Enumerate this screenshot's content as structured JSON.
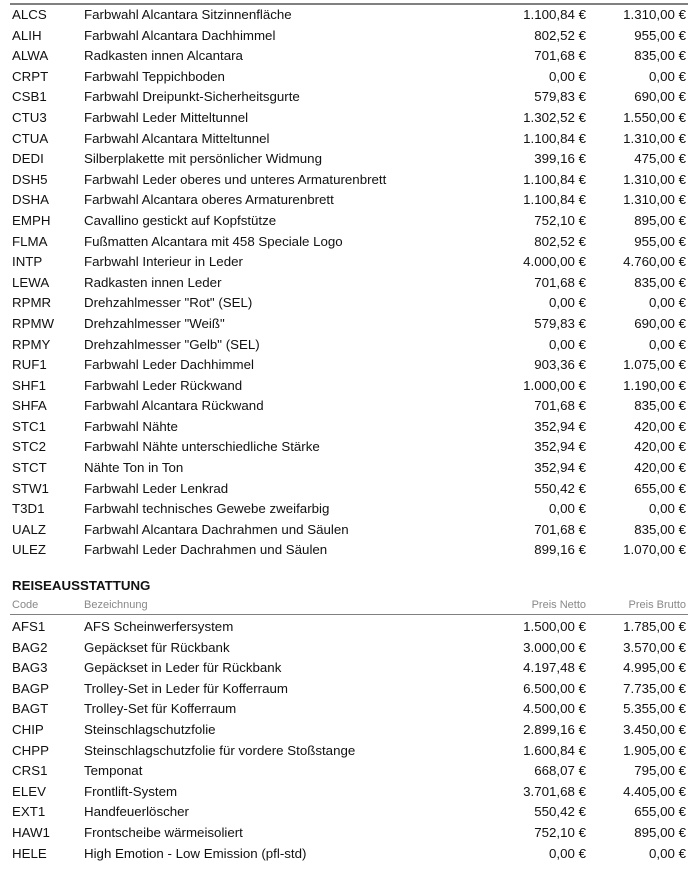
{
  "section1": {
    "rows": [
      {
        "code": "ALCS",
        "desc": "Farbwahl Alcantara Sitzinnenfläche",
        "net": "1.100,84 €",
        "gross": "1.310,00 €"
      },
      {
        "code": "ALIH",
        "desc": "Farbwahl Alcantara Dachhimmel",
        "net": "802,52 €",
        "gross": "955,00 €"
      },
      {
        "code": "ALWA",
        "desc": "Radkasten innen Alcantara",
        "net": "701,68 €",
        "gross": "835,00 €"
      },
      {
        "code": "CRPT",
        "desc": "Farbwahl Teppichboden",
        "net": "0,00 €",
        "gross": "0,00 €"
      },
      {
        "code": "CSB1",
        "desc": "Farbwahl Dreipunkt-Sicherheitsgurte",
        "net": "579,83 €",
        "gross": "690,00 €"
      },
      {
        "code": "CTU3",
        "desc": "Farbwahl Leder Mitteltunnel",
        "net": "1.302,52 €",
        "gross": "1.550,00 €"
      },
      {
        "code": "CTUA",
        "desc": "Farbwahl Alcantara Mitteltunnel",
        "net": "1.100,84 €",
        "gross": "1.310,00 €"
      },
      {
        "code": "DEDI",
        "desc": "Silberplakette mit persönlicher Widmung",
        "net": "399,16 €",
        "gross": "475,00 €"
      },
      {
        "code": "DSH5",
        "desc": "Farbwahl Leder oberes und unteres Armaturenbrett",
        "net": "1.100,84 €",
        "gross": "1.310,00 €"
      },
      {
        "code": "DSHA",
        "desc": "Farbwahl Alcantara oberes Armaturenbrett",
        "net": "1.100,84 €",
        "gross": "1.310,00 €"
      },
      {
        "code": "EMPH",
        "desc": "Cavallino gestickt auf Kopfstütze",
        "net": "752,10 €",
        "gross": "895,00 €"
      },
      {
        "code": "FLMA",
        "desc": "Fußmatten Alcantara mit 458 Speciale Logo",
        "net": "802,52 €",
        "gross": "955,00 €"
      },
      {
        "code": "INTP",
        "desc": "Farbwahl Interieur in Leder",
        "net": "4.000,00 €",
        "gross": "4.760,00 €"
      },
      {
        "code": "LEWA",
        "desc": "Radkasten innen Leder",
        "net": "701,68 €",
        "gross": "835,00 €"
      },
      {
        "code": "RPMR",
        "desc": "Drehzahlmesser \"Rot\" (SEL)",
        "net": "0,00 €",
        "gross": "0,00 €"
      },
      {
        "code": "RPMW",
        "desc": "Drehzahlmesser \"Weiß\"",
        "net": "579,83 €",
        "gross": "690,00 €"
      },
      {
        "code": "RPMY",
        "desc": "Drehzahlmesser \"Gelb\" (SEL)",
        "net": "0,00 €",
        "gross": "0,00 €"
      },
      {
        "code": "RUF1",
        "desc": "Farbwahl Leder Dachhimmel",
        "net": "903,36 €",
        "gross": "1.075,00 €"
      },
      {
        "code": "SHF1",
        "desc": "Farbwahl Leder Rückwand",
        "net": "1.000,00 €",
        "gross": "1.190,00 €"
      },
      {
        "code": "SHFA",
        "desc": "Farbwahl Alcantara Rückwand",
        "net": "701,68 €",
        "gross": "835,00 €"
      },
      {
        "code": "STC1",
        "desc": "Farbwahl Nähte",
        "net": "352,94 €",
        "gross": "420,00 €"
      },
      {
        "code": "STC2",
        "desc": "Farbwahl Nähte unterschiedliche Stärke",
        "net": "352,94 €",
        "gross": "420,00 €"
      },
      {
        "code": "STCT",
        "desc": "Nähte Ton in Ton",
        "net": "352,94 €",
        "gross": "420,00 €"
      },
      {
        "code": "STW1",
        "desc": "Farbwahl Leder Lenkrad",
        "net": "550,42 €",
        "gross": "655,00 €"
      },
      {
        "code": "T3D1",
        "desc": "Farbwahl technisches Gewebe zweifarbig",
        "net": "0,00 €",
        "gross": "0,00 €"
      },
      {
        "code": "UALZ",
        "desc": "Farbwahl Alcantara Dachrahmen und Säulen",
        "net": "701,68 €",
        "gross": "835,00 €"
      },
      {
        "code": "ULEZ",
        "desc": "Farbwahl Leder Dachrahmen und Säulen",
        "net": "899,16 €",
        "gross": "1.070,00 €"
      }
    ]
  },
  "section2": {
    "title": "REISEAUSSTATTUNG",
    "headers": {
      "code": "Code",
      "desc": "Bezeichnung",
      "net": "Preis Netto",
      "gross": "Preis Brutto"
    },
    "rows": [
      {
        "code": "AFS1",
        "desc": "AFS Scheinwerfersystem",
        "net": "1.500,00 €",
        "gross": "1.785,00 €"
      },
      {
        "code": "BAG2",
        "desc": "Gepäckset für Rückbank",
        "net": "3.000,00 €",
        "gross": "3.570,00 €"
      },
      {
        "code": "BAG3",
        "desc": "Gepäckset in Leder für Rückbank",
        "net": "4.197,48 €",
        "gross": "4.995,00 €"
      },
      {
        "code": "BAGP",
        "desc": "Trolley-Set in Leder für Kofferraum",
        "net": "6.500,00 €",
        "gross": "7.735,00 €"
      },
      {
        "code": "BAGT",
        "desc": "Trolley-Set für Kofferraum",
        "net": "4.500,00 €",
        "gross": "5.355,00 €"
      },
      {
        "code": "CHIP",
        "desc": "Steinschlagschutzfolie",
        "net": "2.899,16 €",
        "gross": "3.450,00 €"
      },
      {
        "code": "CHPP",
        "desc": "Steinschlagschutzfolie für vordere Stoßstange",
        "net": "1.600,84 €",
        "gross": "1.905,00 €"
      },
      {
        "code": "CRS1",
        "desc": "Temponat",
        "net": "668,07 €",
        "gross": "795,00 €"
      },
      {
        "code": "ELEV",
        "desc": "Frontlift-System",
        "net": "3.701,68 €",
        "gross": "4.405,00 €"
      },
      {
        "code": "EXT1",
        "desc": "Handfeuerlöscher",
        "net": "550,42 €",
        "gross": "655,00 €"
      },
      {
        "code": "HAW1",
        "desc": "Frontscheibe wärmeisoliert",
        "net": "752,10 €",
        "gross": "895,00 €"
      },
      {
        "code": "HELE",
        "desc": "High Emotion - Low Emission (pfl-std)",
        "net": "0,00 €",
        "gross": "0,00 €"
      }
    ]
  }
}
